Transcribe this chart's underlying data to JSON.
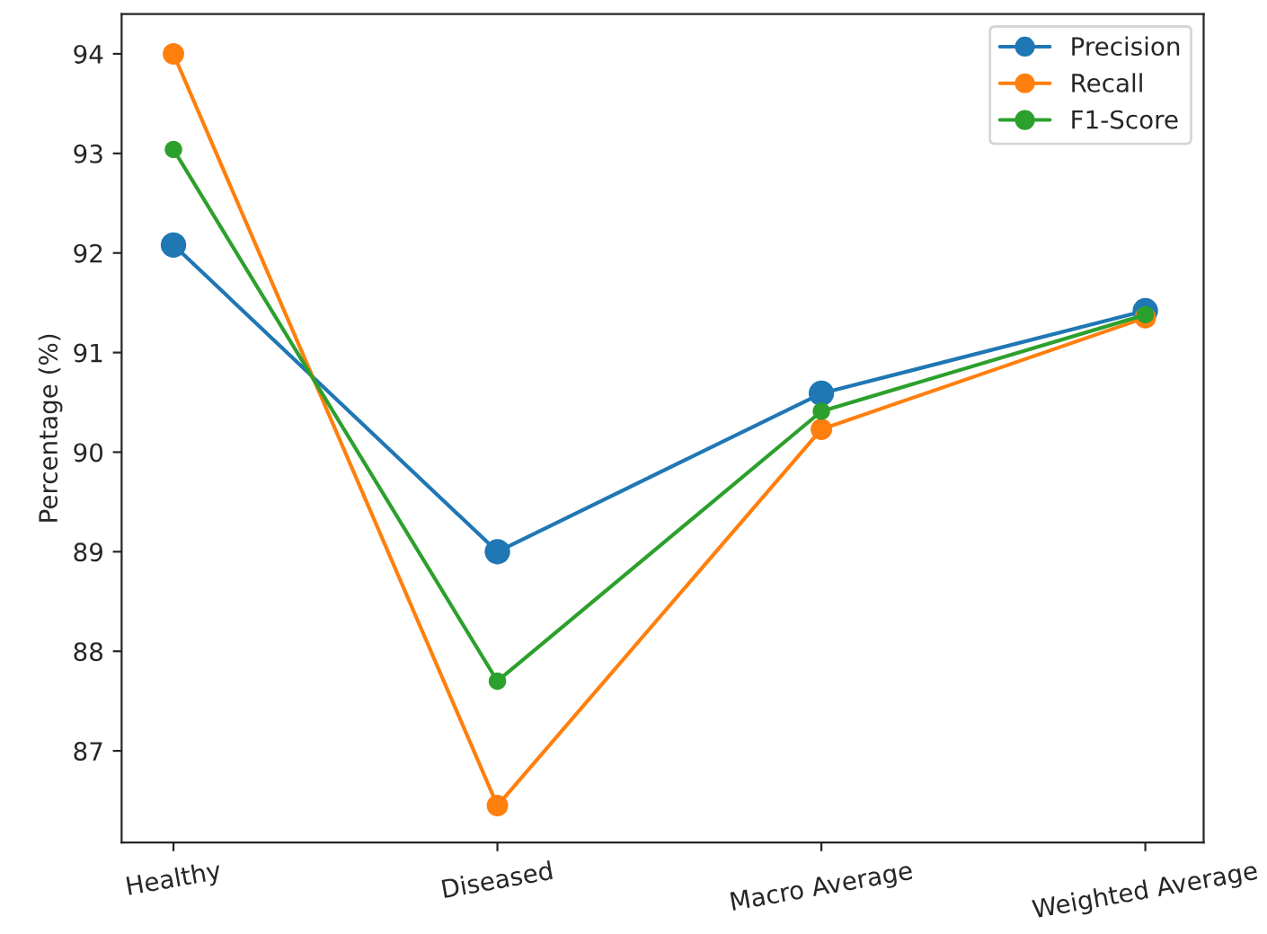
{
  "chart_data": {
    "type": "line",
    "ylabel": "Percentage (%)",
    "categories": [
      "Healthy",
      "Diseased",
      "Macro Average",
      "Weighted Average"
    ],
    "series": [
      {
        "name": "Precision",
        "color": "#1f77b4",
        "values": [
          92.08,
          89.0,
          90.59,
          91.42
        ]
      },
      {
        "name": "Recall",
        "color": "#ff7f0e",
        "values": [
          94.0,
          86.45,
          90.23,
          91.35
        ]
      },
      {
        "name": "F1-Score",
        "color": "#2ca02c",
        "values": [
          93.04,
          87.7,
          90.41,
          91.38
        ]
      }
    ],
    "ylim": [
      86.08,
      94.4
    ],
    "yticks": [
      87,
      88,
      89,
      90,
      91,
      92,
      93,
      94
    ],
    "marker": "circle",
    "line_style": "solid",
    "legend": "top right",
    "grid": false
  }
}
